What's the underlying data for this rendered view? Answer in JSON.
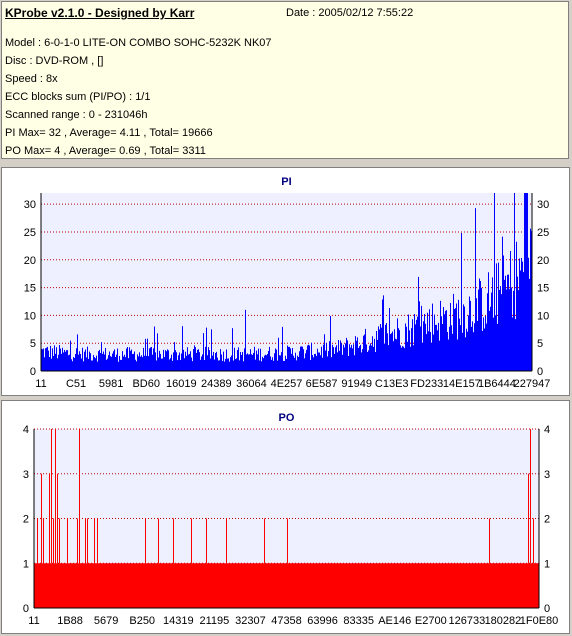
{
  "info": {
    "title": "KProbe v2.1.0 - Designed by Karr",
    "date": "Date : 2005/02/12 7:55:22",
    "lines": [
      "Model : 6-0-1-0 LITE-ON COMBO SOHC-5232K NK07",
      "Disc : DVD-ROM ,  []",
      "Speed : 8x",
      "ECC blocks sum (PI/PO) : 1/1",
      "Scanned range : 0 - 231046h",
      "PI Max= 32 , Average= 4.11 , Total= 19666",
      "PO Max= 4 , Average= 0.69 , Total= 3311"
    ]
  },
  "colors": {
    "pi": "#0000ff",
    "po": "#ff0000",
    "grid": "#c00000",
    "axis": "#000000",
    "title": "#000080"
  },
  "chart_data": [
    {
      "type": "bar",
      "title": "PI",
      "ylim": [
        0,
        32
      ],
      "yticks": [
        0,
        5,
        10,
        15,
        20,
        25,
        30
      ],
      "xticks": [
        "11",
        "C51",
        "5981",
        "BD60",
        "16019",
        "24389",
        "36064",
        "4E257",
        "6E587",
        "91949",
        "C13E3",
        "FD233",
        "14E157",
        "1B6444",
        "227947"
      ],
      "grid": true,
      "series": [
        {
          "color": "#0000ff",
          "profile_x": [
            0,
            0.05,
            0.1,
            0.2,
            0.3,
            0.4,
            0.5,
            0.55,
            0.6,
            0.65,
            0.7,
            0.75,
            0.8,
            0.85,
            0.9,
            0.95,
            1.0
          ],
          "profile_y": [
            3.5,
            3.2,
            3.0,
            3.0,
            3.0,
            3.0,
            3.2,
            3.5,
            3.8,
            5.0,
            6.5,
            7.5,
            9.0,
            10.0,
            12.0,
            15.0,
            20.0
          ],
          "peak": 32
        }
      ]
    },
    {
      "type": "bar",
      "title": "PO",
      "ylim": [
        0,
        4
      ],
      "yticks": [
        0,
        1,
        2,
        3,
        4
      ],
      "xticks": [
        "11",
        "1B88",
        "5679",
        "B250",
        "14319",
        "21195",
        "32307",
        "47358",
        "63996",
        "83335",
        "AE146",
        "E2700",
        "126733",
        "180282",
        "1F0E80"
      ],
      "grid": true,
      "series": [
        {
          "color": "#ff0000",
          "baseline": 1,
          "peak": 4
        }
      ]
    }
  ]
}
